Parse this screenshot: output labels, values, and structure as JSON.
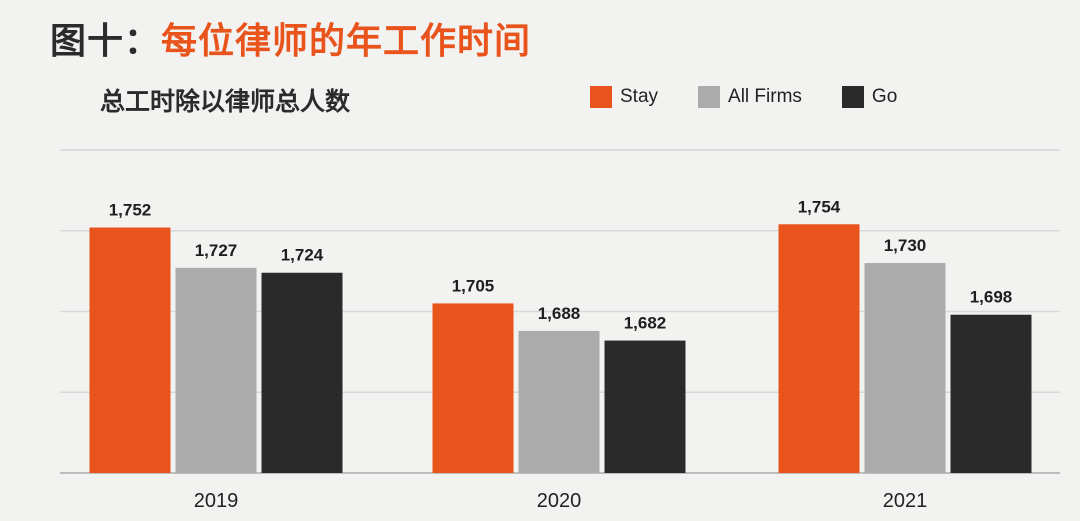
{
  "header": {
    "title_prefix": "图十：",
    "title_main": "每位律师的年工作时间"
  },
  "chart_data": {
    "type": "bar",
    "title": "图十：每位律师的年工作时间",
    "subtitle": "总工时除以律师总人数",
    "categories": [
      "2019",
      "2020",
      "2021"
    ],
    "series": [
      {
        "name": "Stay",
        "values": [
          1752,
          1705,
          1754
        ],
        "color": "#e8541c"
      },
      {
        "name": "All Firms",
        "values": [
          1727,
          1688,
          1730
        ],
        "color": "#ababab"
      },
      {
        "name": "Go",
        "values": [
          1724,
          1682,
          1698
        ],
        "color": "#2a2a2a"
      }
    ],
    "value_labels": [
      [
        "1,752",
        "1,705",
        "1,754"
      ],
      [
        "1,727",
        "1,688",
        "1,730"
      ],
      [
        "1,724",
        "1,682",
        "1,698"
      ]
    ],
    "ylim": [
      1600,
      1800
    ],
    "grid": true,
    "legend_position": "top-right",
    "xlabel": "",
    "ylabel": ""
  }
}
